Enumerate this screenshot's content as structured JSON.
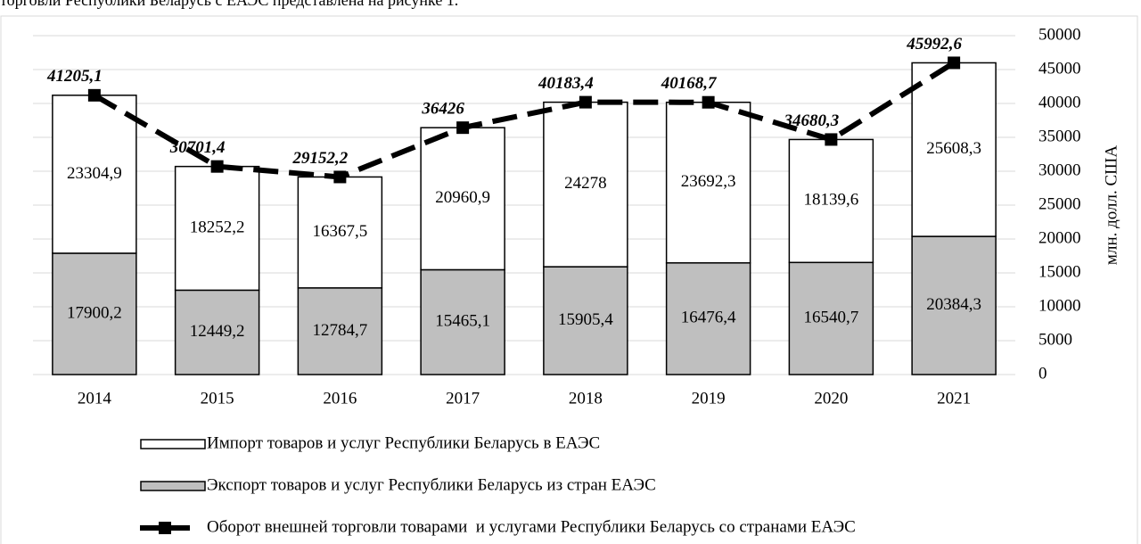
{
  "caption": "торговли Республики Беларусь с ЕАЭС представлена на рисунке 1.",
  "chart_data": {
    "type": "bar",
    "stacked": true,
    "ylabel": "млн. долл. США",
    "categories": [
      "2014",
      "2015",
      "2016",
      "2017",
      "2018",
      "2019",
      "2020",
      "2021"
    ],
    "ylim": [
      0,
      50000
    ],
    "yticks": [
      0,
      5000,
      10000,
      15000,
      20000,
      25000,
      30000,
      35000,
      40000,
      45000,
      50000
    ],
    "grid": true,
    "series": [
      {
        "name": "Экспорт товаров и услуг Республики Беларусь из стран ЕАЭС",
        "type": "bar",
        "color": "#bfbfbf",
        "values": [
          17900.2,
          12449.2,
          12784.7,
          15465.1,
          15905.4,
          16476.4,
          16540.7,
          20384.3
        ],
        "value_labels": [
          "17900,2",
          "12449,2",
          "12784,7",
          "15465,1",
          "15905,4",
          "16476,4",
          "16540,7",
          "20384,3"
        ]
      },
      {
        "name": "Импорт товаров и услуг Республики Беларусь в ЕАЭС",
        "type": "bar",
        "color": "#ffffff",
        "values": [
          23304.9,
          18252.2,
          16367.5,
          20960.9,
          24278,
          23692.3,
          18139.6,
          25608.3
        ],
        "value_labels": [
          "23304,9",
          "18252,2",
          "16367,5",
          "20960,9",
          "24278",
          "23692,3",
          "18139,6",
          "25608,3"
        ]
      },
      {
        "name": "Оборот внешней торговли товарами  и услугами Республики Беларусь со странами ЕАЭС",
        "type": "line",
        "color": "#000000",
        "values": [
          41205.1,
          30701.4,
          29152.2,
          36426,
          40183.4,
          40168.7,
          34680.3,
          45992.6
        ],
        "value_labels": [
          "41205,1",
          "30701,4",
          "29152,2",
          "36426",
          "40183,4",
          "40168,7",
          "34680,3",
          "45992,6"
        ]
      }
    ]
  }
}
